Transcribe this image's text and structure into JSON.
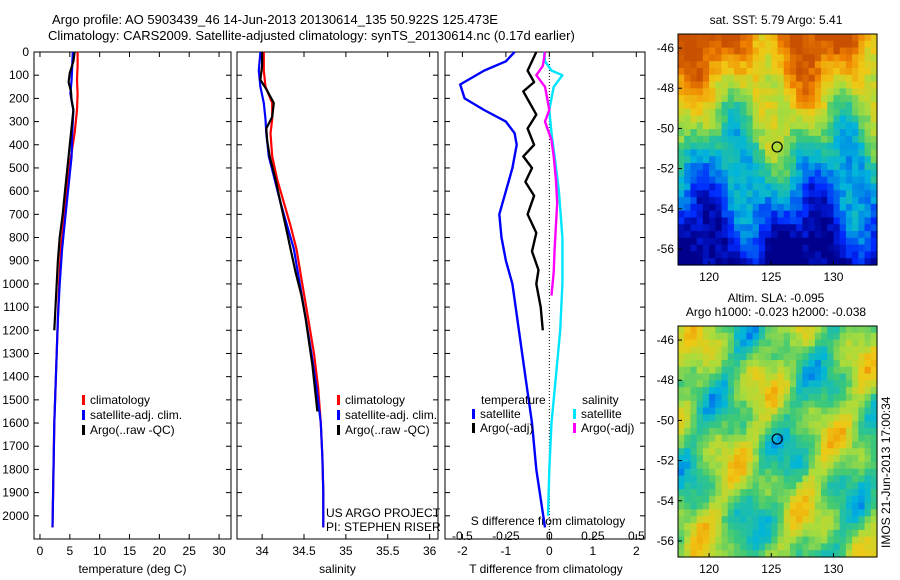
{
  "header": {
    "line1": "Argo profile: AO 5903439_46 14-Jun-2013 20130614_135 50.922S 125.473E",
    "line2": "Climatology: CARS2009. Satellite-adjusted climatology: synTS_20130614.nc (0.17d earlier)"
  },
  "colors": {
    "red": "#ff0000",
    "blue": "#0000ff",
    "black": "#000000",
    "cyan": "#00e5ff",
    "magenta": "#ff00ff"
  },
  "chart_data": [
    {
      "id": "temp",
      "type": "line",
      "xlabel": "temperature (deg C)",
      "ylabel": "",
      "xlim": [
        -1,
        32
      ],
      "ylim": [
        2100,
        0
      ],
      "xticks": [
        0,
        5,
        10,
        15,
        20,
        25,
        30
      ],
      "yticks": [
        0,
        100,
        200,
        300,
        400,
        500,
        600,
        700,
        800,
        900,
        1000,
        1100,
        1200,
        1300,
        1400,
        1500,
        1600,
        1700,
        1800,
        1900,
        2000
      ],
      "legend": {
        "position": "middle-left",
        "entries": [
          {
            "label": "climatology",
            "color": "red"
          },
          {
            "label": "satellite-adj. clim.",
            "color": "blue"
          },
          {
            "label": "Argo(..raw -QC)",
            "color": "black"
          }
        ]
      },
      "series": [
        {
          "name": "climatology",
          "color": "red",
          "x": [
            6.3,
            6.3,
            6.2,
            6.3,
            6.2,
            5.8,
            5.2,
            4.7,
            4.3,
            3.9,
            3.5,
            3.2,
            3.0,
            2.8,
            2.6,
            2.4,
            2.3,
            2.2,
            2.1
          ],
          "y": [
            0,
            60,
            120,
            180,
            250,
            350,
            450,
            550,
            650,
            750,
            850,
            1000,
            1150,
            1300,
            1450,
            1600,
            1750,
            1900,
            2050
          ]
        },
        {
          "name": "satellite-adj. clim.",
          "color": "blue",
          "x": [
            5.5,
            5.4,
            5.3,
            5.1,
            5.6,
            5.4,
            5.3,
            4.9,
            4.5,
            4.1,
            3.7,
            3.3,
            3.0,
            2.8,
            2.6,
            2.4,
            2.3,
            2.2,
            2.1
          ],
          "y": [
            0,
            60,
            120,
            180,
            250,
            350,
            450,
            550,
            650,
            750,
            850,
            1000,
            1150,
            1300,
            1450,
            1600,
            1750,
            1900,
            2050
          ]
        },
        {
          "name": "Argo(..raw -QC)",
          "color": "black",
          "x": [
            5.8,
            5.6,
            5.0,
            4.8,
            5.2,
            5.3,
            5.6,
            5.4,
            5.0,
            4.6,
            4.2,
            3.8,
            3.3,
            3.0,
            2.8,
            2.6,
            2.4
          ],
          "y": [
            0,
            40,
            90,
            130,
            170,
            210,
            250,
            300,
            400,
            500,
            600,
            700,
            800,
            900,
            1000,
            1100,
            1200
          ]
        }
      ]
    },
    {
      "id": "sal",
      "type": "line",
      "xlabel": "salinity",
      "ylabel": "",
      "xlim": [
        33.7,
        36.1
      ],
      "ylim": [
        2100,
        0
      ],
      "xticks": [
        34,
        34.5,
        35,
        35.5,
        36
      ],
      "xticklabels": [
        "34",
        "34.5",
        "35",
        "35.5",
        "36"
      ],
      "legend": {
        "position": "middle-right",
        "entries": [
          {
            "label": "climatology",
            "color": "red"
          },
          {
            "label": "satellite-adj. clim.",
            "color": "blue"
          },
          {
            "label": "Argo(..raw -QC)",
            "color": "black"
          }
        ]
      },
      "annotations": [
        "US ARGO PROJECT",
        "PI: STEPHEN RISER"
      ],
      "series": [
        {
          "name": "climatology",
          "color": "red",
          "x": [
            34.02,
            34.02,
            34.04,
            34.12,
            34.12,
            34.1,
            34.12,
            34.18,
            34.26,
            34.34,
            34.41,
            34.48,
            34.55,
            34.62,
            34.67,
            34.7,
            34.72,
            34.73,
            34.73
          ],
          "y": [
            0,
            80,
            150,
            220,
            290,
            350,
            450,
            550,
            650,
            750,
            850,
            1000,
            1150,
            1300,
            1450,
            1600,
            1750,
            1900,
            2050
          ]
        },
        {
          "name": "satellite-adj. clim.",
          "color": "blue",
          "x": [
            33.98,
            33.96,
            33.98,
            34.02,
            34.04,
            34.05,
            34.08,
            34.15,
            34.22,
            34.3,
            34.38,
            34.45,
            34.52,
            34.59,
            34.65,
            34.7,
            34.72,
            34.73,
            34.73
          ],
          "y": [
            0,
            80,
            150,
            220,
            290,
            350,
            450,
            550,
            650,
            750,
            850,
            1000,
            1150,
            1300,
            1450,
            1600,
            1750,
            1900,
            2050
          ]
        },
        {
          "name": "Argo(..raw -QC)",
          "color": "black",
          "x": [
            34.0,
            34.0,
            33.98,
            34.05,
            34.14,
            34.12,
            34.05,
            34.06,
            34.09,
            34.16,
            34.22,
            34.28,
            34.34,
            34.4,
            34.47,
            34.52,
            34.56,
            34.6,
            34.63,
            34.66
          ],
          "y": [
            0,
            60,
            120,
            160,
            220,
            280,
            330,
            380,
            450,
            550,
            650,
            750,
            850,
            950,
            1050,
            1150,
            1250,
            1350,
            1450,
            1550
          ]
        }
      ]
    },
    {
      "id": "diff",
      "type": "line",
      "xlabel": "T difference from climatology",
      "toplabel": "S difference from climatology",
      "xlim": [
        -2.4,
        2.2
      ],
      "ylim": [
        2100,
        0
      ],
      "xticks": [
        -2,
        -1,
        0,
        1,
        2
      ],
      "sticks": [
        -0.5,
        -0.25,
        0,
        0.25,
        0.5
      ],
      "sticklabels": [
        "-0.5",
        "-0.25",
        "0",
        "0.25",
        "0.5"
      ],
      "s_to_x_factor": 4,
      "zero_line": "dotted",
      "legend": {
        "position": "middle",
        "left_title": "temperature",
        "right_title": "salinity",
        "entries": [
          {
            "label": "satellite",
            "color": "blue"
          },
          {
            "label": "Argo(-adj)",
            "color": "black"
          },
          {
            "label": "satellite",
            "color": "cyan"
          },
          {
            "label": "Argo(-adj)",
            "color": "magenta"
          }
        ]
      },
      "series": [
        {
          "name": "temperature satellite",
          "color": "blue",
          "x": [
            -0.8,
            -1.0,
            -1.5,
            -2.05,
            -1.95,
            -1.5,
            -1.0,
            -0.8,
            -0.75,
            -0.85,
            -1.0,
            -1.15,
            -1.1,
            -1.0,
            -0.85,
            -0.7,
            -0.55,
            -0.4,
            -0.3,
            -0.18,
            -0.1
          ],
          "y": [
            0,
            40,
            80,
            140,
            200,
            250,
            300,
            350,
            400,
            500,
            600,
            700,
            800,
            900,
            1000,
            1200,
            1400,
            1600,
            1800,
            1950,
            2050
          ]
        },
        {
          "name": "temperature Argo(-adj)",
          "color": "black",
          "x": [
            -0.3,
            -0.5,
            -0.35,
            -0.6,
            -0.45,
            -0.3,
            -0.5,
            -0.35,
            -0.6,
            -0.4,
            -0.55,
            -0.35,
            -0.5,
            -0.3,
            -0.4,
            -0.25,
            -0.3,
            -0.2,
            -0.15
          ],
          "y": [
            0,
            80,
            130,
            170,
            220,
            270,
            330,
            400,
            450,
            500,
            560,
            620,
            700,
            780,
            860,
            940,
            1000,
            1100,
            1200
          ]
        },
        {
          "name": "salinity satellite",
          "color": "cyan",
          "x": [
            -0.12,
            -0.1,
            0.05,
            0.3,
            0.1,
            0.0,
            0.05,
            0.12,
            0.22,
            0.3,
            0.3,
            0.25,
            0.15,
            0.05,
            0.0,
            -0.03
          ],
          "y": [
            0,
            40,
            80,
            100,
            150,
            250,
            350,
            450,
            600,
            800,
            1000,
            1200,
            1400,
            1600,
            1800,
            2000
          ]
        },
        {
          "name": "salinity Argo(-adj)",
          "color": "magenta",
          "x": [
            -0.1,
            -0.15,
            -0.3,
            -0.1,
            -0.05,
            0.0,
            -0.1,
            0.05,
            0.1,
            0.15,
            0.18,
            0.15,
            0.12,
            0.1,
            0.05
          ],
          "y": [
            0,
            60,
            100,
            150,
            200,
            250,
            300,
            380,
            450,
            550,
            650,
            750,
            850,
            950,
            1050
          ]
        }
      ]
    },
    {
      "id": "sst-map",
      "type": "heatmap",
      "title": "sat. SST: 5.79 Argo: 5.41",
      "xticks": [
        120,
        125,
        130
      ],
      "yticks": [
        -46,
        -48,
        -50,
        -52,
        -54,
        -56
      ],
      "xlim": [
        117.5,
        133.5
      ],
      "ylim": [
        -56.8,
        -45.3
      ],
      "marker": {
        "lon": 125.473,
        "lat": -50.922
      },
      "field": "SST"
    },
    {
      "id": "sla-map",
      "type": "heatmap",
      "title1": "Altim. SLA: -0.095",
      "title2": "Argo h1000: -0.023 h2000: -0.038",
      "xticks": [
        120,
        125,
        130
      ],
      "yticks": [
        -46,
        -48,
        -50,
        -52,
        -54,
        -56
      ],
      "xlim": [
        117.5,
        133.5
      ],
      "ylim": [
        -56.8,
        -45.3
      ],
      "marker": {
        "lon": 125.473,
        "lat": -50.922
      },
      "field": "SLA"
    }
  ],
  "footer": {
    "credit": "IMOS 21-Jun-2013 17:00:34"
  }
}
